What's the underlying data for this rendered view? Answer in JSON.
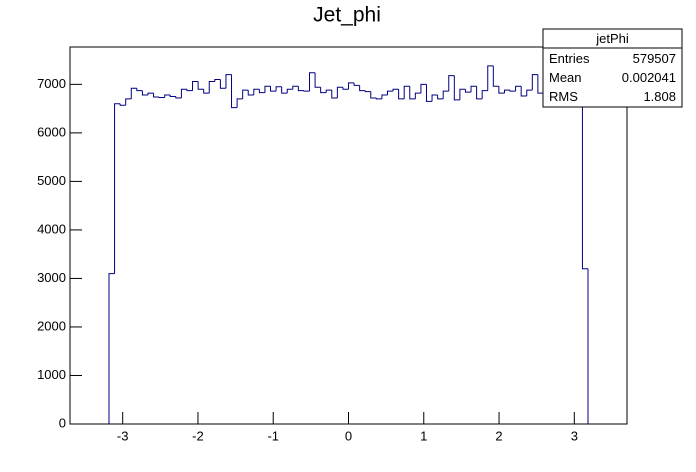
{
  "chart_data": {
    "type": "histogram",
    "title": "Jet_phi",
    "color": "#000080",
    "bins": [
      -3.7,
      -3.626,
      -3.552,
      -3.478,
      -3.404,
      -3.33,
      -3.256,
      -3.182,
      -3.108,
      -3.034,
      -2.96,
      -2.886,
      -2.812,
      -2.738,
      -2.664,
      -2.59,
      -2.516,
      -2.442,
      -2.368,
      -2.294,
      -2.22,
      -2.146,
      -2.072,
      -1.998,
      -1.924,
      -1.85,
      -1.776,
      -1.702,
      -1.628,
      -1.554,
      -1.48,
      -1.406,
      -1.332,
      -1.258,
      -1.184,
      -1.11,
      -1.036,
      -0.962,
      -0.888,
      -0.814,
      -0.74,
      -0.666,
      -0.592,
      -0.518,
      -0.444,
      -0.37,
      -0.296,
      -0.222,
      -0.148,
      -0.074,
      0,
      0.074,
      0.148,
      0.222,
      0.296,
      0.37,
      0.444,
      0.518,
      0.592,
      0.666,
      0.74,
      0.814,
      0.888,
      0.962,
      1.036,
      1.11,
      1.184,
      1.258,
      1.332,
      1.406,
      1.48,
      1.554,
      1.628,
      1.702,
      1.776,
      1.85,
      1.924,
      1.998,
      2.072,
      2.146,
      2.22,
      2.294,
      2.368,
      2.442,
      2.516,
      2.59,
      2.664,
      2.738,
      2.812,
      2.886,
      2.96,
      3.034,
      3.108,
      3.182,
      3.256,
      3.33,
      3.404,
      3.478,
      3.552,
      3.626,
      3.7
    ],
    "values": [
      0,
      0,
      0,
      0,
      0,
      0,
      0,
      3100,
      6600,
      6570,
      6700,
      6920,
      6870,
      6780,
      6820,
      6740,
      6730,
      6780,
      6750,
      6720,
      6900,
      6870,
      7060,
      6900,
      6820,
      7060,
      7100,
      6920,
      7200,
      6520,
      6700,
      6880,
      6780,
      6900,
      6830,
      6960,
      6860,
      6950,
      6820,
      6900,
      6960,
      6870,
      6860,
      7240,
      6940,
      6830,
      6880,
      6720,
      6940,
      6900,
      7030,
      6980,
      6870,
      6850,
      6720,
      6700,
      6780,
      6860,
      6900,
      6700,
      6960,
      6700,
      6820,
      7000,
      6650,
      6780,
      6700,
      6860,
      7180,
      6680,
      6900,
      6840,
      6960,
      6700,
      6870,
      7380,
      6960,
      6820,
      6880,
      6860,
      6960,
      6760,
      6880,
      7200,
      6820,
      6960,
      6880,
      7060,
      6650,
      6700,
      6780,
      6820,
      3200,
      0,
      0,
      0,
      0,
      0,
      0,
      0
    ],
    "xlim": [
      -3.7,
      3.7
    ],
    "ylim": [
      0,
      7770
    ],
    "xticks": [
      -3,
      -2,
      -1,
      0,
      1,
      2,
      3
    ],
    "yticks": [
      0,
      1000,
      2000,
      3000,
      4000,
      5000,
      6000,
      7000
    ],
    "stats_box": {
      "title": "jetPhi",
      "rows": [
        [
          "Entries",
          579507
        ],
        [
          "Mean",
          0.002041
        ],
        [
          "RMS",
          1.808
        ]
      ]
    }
  }
}
